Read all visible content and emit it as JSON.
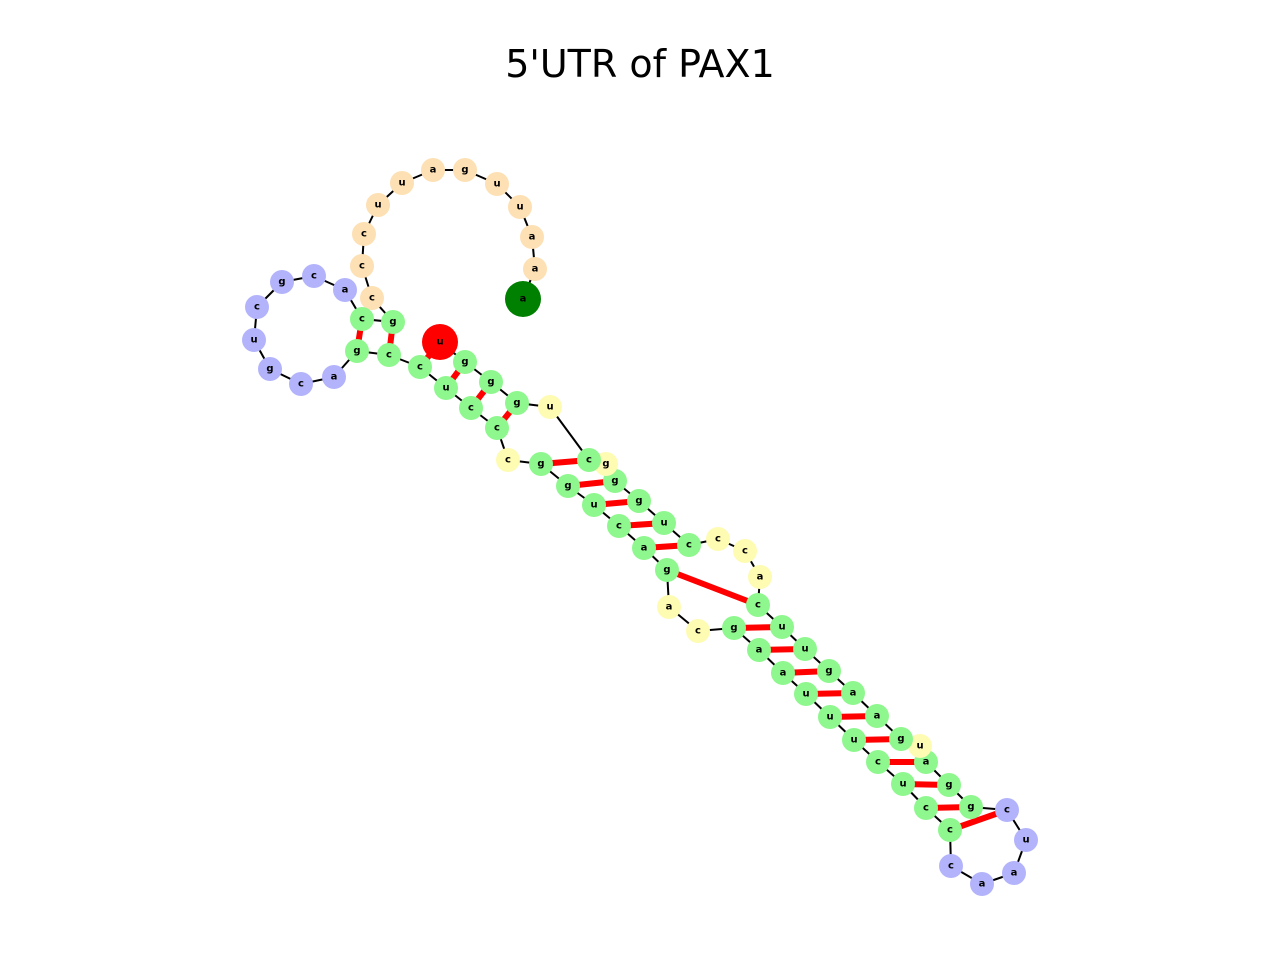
{
  "title": "5'UTR of PAX1",
  "colors": {
    "stem": "#8ef78e",
    "hairpin_loop": "#b3b3fb",
    "interior_loop": "#fefbb3",
    "exterior": "#fde0b4",
    "start": "#008000",
    "end": "#ff0000",
    "pair_bond": "#ff0000",
    "backbone": "#000000"
  },
  "nucleotides": [
    {
      "b": "a",
      "t": "start"
    },
    {
      "b": "a",
      "t": "exterior"
    },
    {
      "b": "a",
      "t": "exterior"
    },
    {
      "b": "u",
      "t": "exterior"
    },
    {
      "b": "u",
      "t": "exterior"
    },
    {
      "b": "g",
      "t": "exterior"
    },
    {
      "b": "a",
      "t": "exterior"
    },
    {
      "b": "u",
      "t": "exterior"
    },
    {
      "b": "u",
      "t": "exterior"
    },
    {
      "b": "c",
      "t": "exterior"
    },
    {
      "b": "c",
      "t": "exterior"
    },
    {
      "b": "c",
      "t": "exterior"
    },
    {
      "b": "g",
      "t": "stem"
    },
    {
      "b": "c",
      "t": "stem"
    },
    {
      "b": "a",
      "t": "hairpin_loop"
    },
    {
      "b": "c",
      "t": "hairpin_loop"
    },
    {
      "b": "g",
      "t": "hairpin_loop"
    },
    {
      "b": "c",
      "t": "hairpin_loop"
    },
    {
      "b": "u",
      "t": "hairpin_loop"
    },
    {
      "b": "g",
      "t": "hairpin_loop"
    },
    {
      "b": "c",
      "t": "hairpin_loop"
    },
    {
      "b": "a",
      "t": "hairpin_loop"
    },
    {
      "b": "g",
      "t": "stem"
    },
    {
      "b": "c",
      "t": "stem"
    },
    {
      "b": "c",
      "t": "stem"
    },
    {
      "b": "u",
      "t": "stem"
    },
    {
      "b": "c",
      "t": "stem"
    },
    {
      "b": "c",
      "t": "stem"
    },
    {
      "b": "c",
      "t": "interior_loop"
    },
    {
      "b": "g",
      "t": "stem"
    },
    {
      "b": "g",
      "t": "stem"
    },
    {
      "b": "u",
      "t": "stem"
    },
    {
      "b": "c",
      "t": "stem"
    },
    {
      "b": "a",
      "t": "stem"
    },
    {
      "b": "g",
      "t": "stem"
    },
    {
      "b": "a",
      "t": "interior_loop"
    },
    {
      "b": "c",
      "t": "interior_loop"
    },
    {
      "b": "g",
      "t": "stem"
    },
    {
      "b": "a",
      "t": "stem"
    },
    {
      "b": "a",
      "t": "stem"
    },
    {
      "b": "u",
      "t": "stem"
    },
    {
      "b": "u",
      "t": "stem"
    },
    {
      "b": "u",
      "t": "stem"
    },
    {
      "b": "c",
      "t": "stem"
    },
    {
      "b": "u",
      "t": "stem"
    },
    {
      "b": "c",
      "t": "stem"
    },
    {
      "b": "c",
      "t": "stem"
    },
    {
      "b": "c",
      "t": "hairpin_loop"
    },
    {
      "b": "a",
      "t": "hairpin_loop"
    },
    {
      "b": "a",
      "t": "hairpin_loop"
    },
    {
      "b": "u",
      "t": "hairpin_loop"
    },
    {
      "b": "c",
      "t": "hairpin_loop"
    },
    {
      "b": "g",
      "t": "stem"
    },
    {
      "b": "g",
      "t": "stem"
    },
    {
      "b": "a",
      "t": "stem"
    },
    {
      "b": "u",
      "t": "interior_loop"
    },
    {
      "b": "g",
      "t": "stem"
    },
    {
      "b": "a",
      "t": "stem"
    },
    {
      "b": "a",
      "t": "stem"
    },
    {
      "b": "g",
      "t": "stem"
    },
    {
      "b": "u",
      "t": "stem"
    },
    {
      "b": "u",
      "t": "stem"
    },
    {
      "b": "c",
      "t": "stem"
    },
    {
      "b": "a",
      "t": "interior_loop"
    },
    {
      "b": "c",
      "t": "interior_loop"
    },
    {
      "b": "c",
      "t": "interior_loop"
    },
    {
      "b": "c",
      "t": "stem"
    },
    {
      "b": "u",
      "t": "stem"
    },
    {
      "b": "g",
      "t": "stem"
    },
    {
      "b": "g",
      "t": "stem"
    },
    {
      "b": "g",
      "t": "interior_loop"
    },
    {
      "b": "c",
      "t": "stem"
    },
    {
      "b": "u",
      "t": "interior_loop"
    },
    {
      "b": "g",
      "t": "stem"
    },
    {
      "b": "g",
      "t": "stem"
    },
    {
      "b": "g",
      "t": "stem"
    },
    {
      "b": "u",
      "t": "end"
    }
  ],
  "pairs": [
    [
      12,
      23
    ],
    [
      13,
      22
    ],
    [
      24,
      76
    ],
    [
      25,
      75
    ],
    [
      26,
      74
    ],
    [
      27,
      73
    ],
    [
      29,
      71
    ],
    [
      30,
      69
    ],
    [
      31,
      68
    ],
    [
      32,
      67
    ],
    [
      33,
      66
    ],
    [
      34,
      62
    ],
    [
      37,
      61
    ],
    [
      38,
      60
    ],
    [
      39,
      59
    ],
    [
      40,
      58
    ],
    [
      41,
      57
    ],
    [
      42,
      56
    ],
    [
      43,
      54
    ],
    [
      44,
      53
    ],
    [
      45,
      52
    ],
    [
      46,
      51
    ]
  ]
}
